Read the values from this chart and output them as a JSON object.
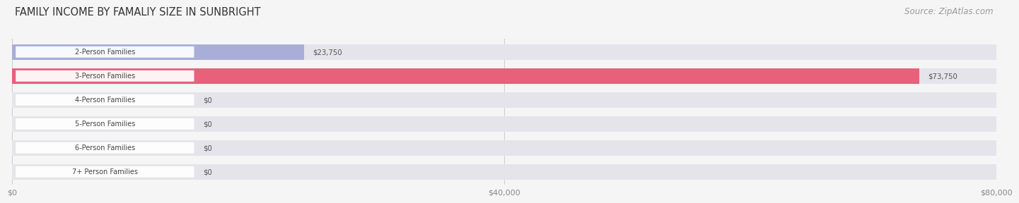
{
  "title": "FAMILY INCOME BY FAMALIY SIZE IN SUNBRIGHT",
  "source": "Source: ZipAtlas.com",
  "categories": [
    "2-Person Families",
    "3-Person Families",
    "4-Person Families",
    "5-Person Families",
    "6-Person Families",
    "7+ Person Families"
  ],
  "values": [
    23750,
    73750,
    0,
    0,
    0,
    0
  ],
  "bar_colors": [
    "#a8aed8",
    "#e8607a",
    "#f5c98a",
    "#f0a8a8",
    "#a8bede",
    "#c8b8d8"
  ],
  "value_labels": [
    "$23,750",
    "$73,750",
    "$0",
    "$0",
    "$0",
    "$0"
  ],
  "xlim": [
    0,
    80000
  ],
  "xticks": [
    0,
    40000,
    80000
  ],
  "xticklabels": [
    "$0",
    "$40,000",
    "$80,000"
  ],
  "background_color": "#f5f5f5",
  "bar_bg_color": "#e4e4ea",
  "title_fontsize": 10.5,
  "source_fontsize": 8.5,
  "bar_height": 0.65
}
